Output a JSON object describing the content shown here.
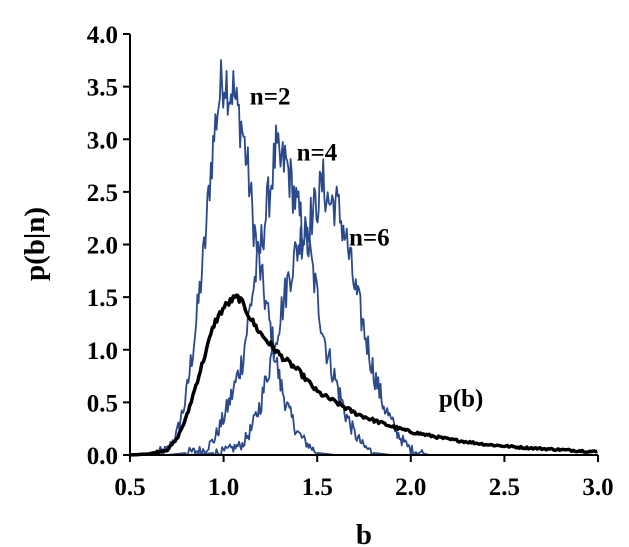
{
  "chart_data": {
    "type": "line",
    "xlabel": "b",
    "ylabel": "p(b|n)",
    "xlim": [
      0.5,
      3.0
    ],
    "ylim": [
      0.0,
      4.0
    ],
    "xticks": [
      "0.5",
      "1.0",
      "1.5",
      "2.0",
      "2.5",
      "3.0"
    ],
    "yticks": [
      "0.0",
      "0.5",
      "1.0",
      "1.5",
      "2.0",
      "2.5",
      "3.0",
      "3.5",
      "4.0"
    ],
    "grid": false,
    "legend": "none",
    "annotations": [
      {
        "text": "n=2",
        "x": 1.14,
        "y": 3.33
      },
      {
        "text": "n=4",
        "x": 1.39,
        "y": 2.8
      },
      {
        "text": "n=6",
        "x": 1.67,
        "y": 1.99
      },
      {
        "text": "p(b)",
        "x": 2.15,
        "y": 0.46
      }
    ],
    "series": [
      {
        "name": "n=2",
        "color": "#2b4a8b",
        "x": [
          0.5,
          0.6,
          0.7,
          0.75,
          0.8,
          0.85,
          0.9,
          0.93,
          0.96,
          0.99,
          1.01,
          1.03,
          1.05,
          1.07,
          1.1,
          1.13,
          1.16,
          1.2,
          1.25,
          1.3,
          1.35,
          1.4,
          1.45,
          1.5,
          1.6
        ],
        "y": [
          0.0,
          0.0,
          0.05,
          0.2,
          0.55,
          1.2,
          2.0,
          2.7,
          3.2,
          3.55,
          3.6,
          3.45,
          3.5,
          3.3,
          3.1,
          2.7,
          2.2,
          1.7,
          1.2,
          0.7,
          0.4,
          0.2,
          0.1,
          0.02,
          0.0
        ]
      },
      {
        "name": "n=4",
        "color": "#2b4a8b",
        "x": [
          0.5,
          0.7,
          0.8,
          0.9,
          0.95,
          1.0,
          1.05,
          1.1,
          1.15,
          1.2,
          1.25,
          1.28,
          1.3,
          1.33,
          1.36,
          1.4,
          1.45,
          1.5,
          1.55,
          1.6,
          1.65,
          1.7,
          1.75,
          1.8,
          1.9
        ],
        "y": [
          0.0,
          0.0,
          0.02,
          0.05,
          0.15,
          0.35,
          0.6,
          0.9,
          1.5,
          2.0,
          2.55,
          2.9,
          2.75,
          2.8,
          2.6,
          2.3,
          2.0,
          1.5,
          1.0,
          0.7,
          0.4,
          0.2,
          0.08,
          0.02,
          0.0
        ]
      },
      {
        "name": "n=6",
        "color": "#2b4a8b",
        "x": [
          0.5,
          0.8,
          0.9,
          1.0,
          1.1,
          1.15,
          1.2,
          1.25,
          1.3,
          1.35,
          1.4,
          1.45,
          1.5,
          1.53,
          1.56,
          1.6,
          1.65,
          1.7,
          1.75,
          1.8,
          1.85,
          1.9,
          1.95,
          2.0,
          2.1
        ],
        "y": [
          0.0,
          0.0,
          0.01,
          0.03,
          0.1,
          0.25,
          0.5,
          0.9,
          1.3,
          1.7,
          2.0,
          2.2,
          2.4,
          2.6,
          2.4,
          2.4,
          2.1,
          1.6,
          1.2,
          0.8,
          0.5,
          0.3,
          0.15,
          0.05,
          0.0
        ]
      },
      {
        "name": "p(b)",
        "color": "#000000",
        "x": [
          0.5,
          0.6,
          0.7,
          0.75,
          0.8,
          0.85,
          0.9,
          0.95,
          1.0,
          1.05,
          1.08,
          1.12,
          1.16,
          1.2,
          1.3,
          1.4,
          1.5,
          1.6,
          1.7,
          1.8,
          1.9,
          2.0,
          2.2,
          2.4,
          2.6,
          2.8,
          3.0
        ],
        "y": [
          0.0,
          0.01,
          0.05,
          0.15,
          0.35,
          0.65,
          0.95,
          1.25,
          1.4,
          1.48,
          1.5,
          1.38,
          1.25,
          1.15,
          0.95,
          0.8,
          0.6,
          0.5,
          0.4,
          0.33,
          0.27,
          0.22,
          0.15,
          0.1,
          0.07,
          0.05,
          0.03
        ]
      }
    ]
  }
}
